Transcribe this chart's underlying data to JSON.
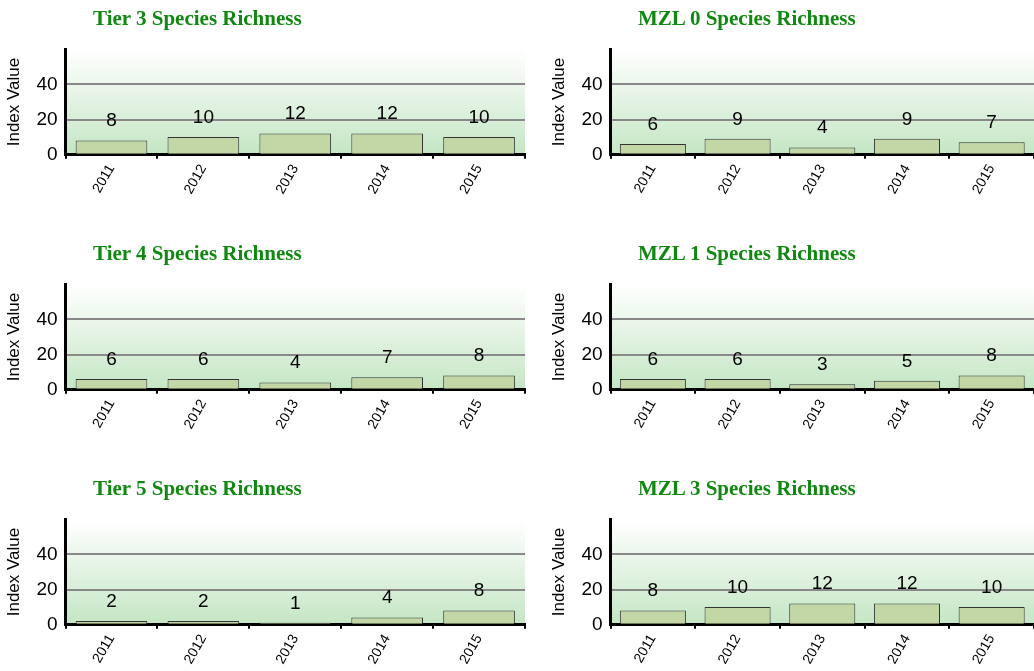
{
  "chart_data": [
    {
      "type": "bar",
      "title": "Tier 3 Species Richness",
      "ylabel": "Index Value",
      "categories": [
        "2011",
        "2012",
        "2013",
        "2014",
        "2015"
      ],
      "values": [
        8,
        10,
        12,
        12,
        10
      ],
      "color": "#c2d6a6",
      "ylim": [
        0,
        60
      ],
      "yticks": [
        0,
        20,
        40
      ],
      "grid": "y",
      "data_labels": true
    },
    {
      "type": "bar",
      "title": "MZL 0 Species Richness",
      "ylabel": "Index Value",
      "categories": [
        "2011",
        "2012",
        "2013",
        "2014",
        "2015"
      ],
      "values": [
        6,
        9,
        4,
        9,
        7
      ],
      "color": "#c2d6a6",
      "ylim": [
        0,
        60
      ],
      "yticks": [
        0,
        20,
        40
      ],
      "grid": "y",
      "data_labels": true
    },
    {
      "type": "bar",
      "title": "Tier 4 Species Richness",
      "ylabel": "Index Value",
      "categories": [
        "2011",
        "2012",
        "2013",
        "2014",
        "2015"
      ],
      "values": [
        6,
        6,
        4,
        7,
        8
      ],
      "color": "#c2d6a6",
      "ylim": [
        0,
        60
      ],
      "yticks": [
        0,
        20,
        40
      ],
      "grid": "y",
      "data_labels": true
    },
    {
      "type": "bar",
      "title": "MZL 1 Species Richness",
      "ylabel": "Index Value",
      "categories": [
        "2011",
        "2012",
        "2013",
        "2014",
        "2015"
      ],
      "values": [
        6,
        6,
        3,
        5,
        8
      ],
      "color": "#c2d6a6",
      "ylim": [
        0,
        60
      ],
      "yticks": [
        0,
        20,
        40
      ],
      "grid": "y",
      "data_labels": true
    },
    {
      "type": "bar",
      "title": "Tier 5 Species Richness",
      "ylabel": "Index Value",
      "categories": [
        "2011",
        "2012",
        "2013",
        "2014",
        "2015"
      ],
      "values": [
        2,
        2,
        1,
        4,
        8
      ],
      "color": "#c2d6a6",
      "ylim": [
        0,
        60
      ],
      "yticks": [
        0,
        20,
        40
      ],
      "grid": "y",
      "data_labels": true
    },
    {
      "type": "bar",
      "title": "MZL 3 Species Richness",
      "ylabel": "Index Value",
      "categories": [
        "2011",
        "2012",
        "2013",
        "2014",
        "2015"
      ],
      "values": [
        8,
        10,
        12,
        12,
        10
      ],
      "color": "#c2d6a6",
      "ylim": [
        0,
        60
      ],
      "yticks": [
        0,
        20,
        40
      ],
      "grid": "y",
      "data_labels": true
    }
  ]
}
